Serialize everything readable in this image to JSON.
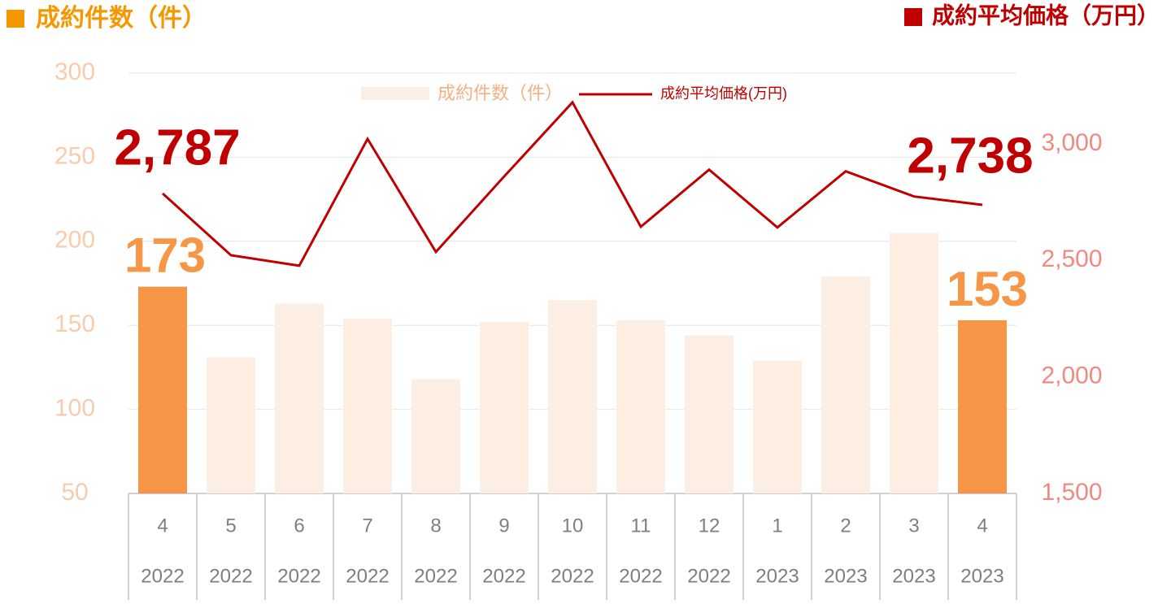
{
  "chart_data": {
    "type": "bar_line",
    "left_axis_title": "成約件数（件）",
    "right_axis_title": "成約平均価格（万円）",
    "categories": [
      "4",
      "5",
      "6",
      "7",
      "8",
      "9",
      "10",
      "11",
      "12",
      "1",
      "2",
      "3",
      "4"
    ],
    "years": [
      "2022",
      "2022",
      "2022",
      "2022",
      "2022",
      "2022",
      "2022",
      "2022",
      "2022",
      "2023",
      "2023",
      "2023",
      "2023"
    ],
    "series": [
      {
        "name": "成約件数（件）",
        "type": "bar",
        "color": "#f79646",
        "colors": [
          "#f79646",
          "#fdeee3",
          "#fdeee3",
          "#fdeee3",
          "#fdeee3",
          "#fdeee3",
          "#fdeee3",
          "#fdeee3",
          "#fdeee3",
          "#fdeee3",
          "#fdeee3",
          "#fdeee3",
          "#f79646"
        ],
        "values": [
          173,
          131,
          163,
          154,
          118,
          152,
          165,
          153,
          144,
          129,
          179,
          205,
          153
        ],
        "value_labels": [
          "173",
          null,
          null,
          null,
          null,
          null,
          null,
          null,
          null,
          null,
          null,
          null,
          "153"
        ]
      },
      {
        "name": "成約平均価格(万円)",
        "type": "line",
        "axis": "y2",
        "color": "#c00000",
        "values": [
          2787,
          2522,
          2477,
          3021,
          2536,
          2860,
          3178,
          2644,
          2889,
          2641,
          2882,
          2774,
          2738
        ],
        "value_labels": [
          "2,787",
          null,
          null,
          null,
          null,
          null,
          null,
          null,
          null,
          null,
          null,
          null,
          "2,738"
        ]
      }
    ],
    "ylim": [
      50,
      300
    ],
    "yticks": [
      50,
      100,
      150,
      200,
      250,
      300
    ],
    "y2lim": [
      1500,
      3303
    ],
    "y2ticks": [
      {
        "value": 1500,
        "label": "1,500"
      },
      {
        "value": 2000,
        "label": "2,000"
      },
      {
        "value": 2500,
        "label": "2,500"
      },
      {
        "value": 3000,
        "label": "3,000"
      }
    ],
    "grid": true
  }
}
